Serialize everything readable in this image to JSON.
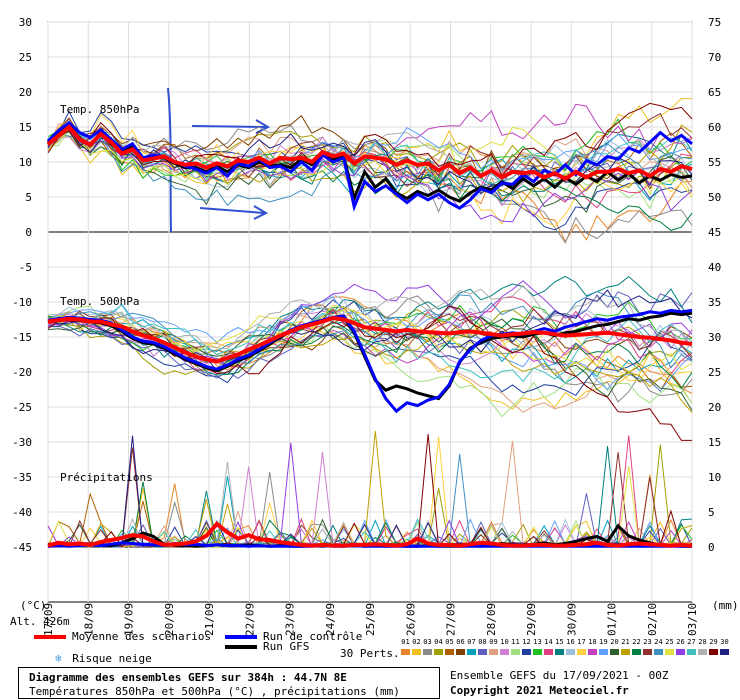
{
  "chart_data": {
    "type": "line",
    "title": "Diagramme des ensembles GEFS sur 384h : 44.7N 8E",
    "subtitle": "Températures 850hPa et 500hPa (°C) , précipitations (mm)",
    "x_ticks": [
      "17/09",
      "18/09",
      "19/09",
      "20/09",
      "21/09",
      "22/09",
      "23/09",
      "24/09",
      "25/09",
      "26/09",
      "27/09",
      "28/09",
      "29/09",
      "30/09",
      "01/10",
      "02/10",
      "03/10"
    ],
    "y_left_ticks": [
      "30",
      "25",
      "20",
      "15",
      "10",
      "5",
      "0",
      "-5",
      "-10",
      "-15",
      "-20",
      "-25",
      "-30",
      "-35",
      "-40",
      "-45"
    ],
    "y_right_ticks": [
      "75",
      "70",
      "65",
      "60",
      "55",
      "50",
      "45",
      "40",
      "35",
      "30",
      "25",
      "20",
      "15",
      "10",
      "5",
      "0"
    ],
    "y_left_unit": "(°C)",
    "y_right_unit": "(mm)",
    "panel_labels": {
      "t850": "Temp. 850hPa",
      "t500": "Temp. 500hPa",
      "precip": "Précipitations"
    },
    "altitude": "Alt. 426m",
    "grid": true,
    "series": [
      {
        "name": "Moyenne des scénarios",
        "color": "#ff0000",
        "t850": [
          12.5,
          13.8,
          15,
          13.2,
          12.5,
          14,
          12.8,
          11.2,
          11.8,
          10.2,
          10.5,
          10.8,
          10,
          9.6,
          9.8,
          9.2,
          9.8,
          9.4,
          10.2,
          10,
          10.6,
          9.8,
          10.6,
          10.4,
          10.6,
          10,
          11.4,
          10.8,
          11.2,
          9.8,
          10.8,
          10.6,
          10.4,
          9.6,
          10.2,
          9.6,
          9.8,
          8.8,
          9.6,
          8.4,
          9.2,
          8,
          8.8,
          7.8,
          8.6,
          8.4,
          8.6,
          7.8,
          8.4,
          7.6,
          8.6,
          7.8,
          8.6,
          8.6,
          9,
          8.4,
          8.8,
          8,
          9,
          8.6,
          9.4,
          9
        ],
        "t500": [
          -12.8,
          -12.6,
          -12.4,
          -12.5,
          -12.8,
          -12.8,
          -13.2,
          -13.5,
          -14.2,
          -14.8,
          -15.2,
          -15.8,
          -16.5,
          -17.2,
          -17.8,
          -18.2,
          -18.5,
          -18,
          -17.5,
          -16.8,
          -16.2,
          -15.5,
          -14.8,
          -14.2,
          -13.6,
          -13.2,
          -12.8,
          -12.3,
          -12.5,
          -13,
          -13.6,
          -13.8,
          -14,
          -14.2,
          -14,
          -14.2,
          -14.3,
          -14.4,
          -14.5,
          -14.3,
          -14.2,
          -14.4,
          -14.6,
          -14.8,
          -14.6,
          -14.5,
          -14.3,
          -14.4,
          -14.6,
          -14.8,
          -14.7,
          -14.6,
          -14.5,
          -14.4,
          -14.6,
          -14.8,
          -15,
          -15.1,
          -15.3,
          -15.5,
          -15.8,
          -16
        ],
        "precip": [
          0.2,
          0.6,
          0.4,
          0.5,
          0.3,
          0.7,
          1,
          1.3,
          1.7,
          1.5,
          0.8,
          0.3,
          0.4,
          0.5,
          0.8,
          1.6,
          3.3,
          2.1,
          1.2,
          1.7,
          1.1,
          1,
          0.7,
          0.5,
          0.3,
          0.2,
          0.3,
          0.2,
          0.2,
          0.3,
          0.3,
          0.4,
          0.3,
          0.2,
          0.4,
          1.2,
          0.5,
          0.3,
          0.3,
          0.2,
          0.4,
          0.6,
          0.5,
          0.3,
          0.2,
          0.2,
          0.3,
          0.3,
          0.2,
          0.2,
          0.3,
          0.4,
          0.6,
          0.3,
          0.2,
          0.4,
          0.5,
          0.4,
          0.3,
          0.2,
          0.3,
          0.2
        ]
      },
      {
        "name": "Run de contrôle",
        "color": "#0000ff",
        "t850": [
          13,
          14.5,
          15.6,
          14.2,
          13.5,
          14.6,
          13.2,
          11.8,
          12.6,
          10.6,
          11,
          10.8,
          10,
          9.4,
          9,
          8.4,
          9.2,
          8,
          9.8,
          9.4,
          10.4,
          9.2,
          9.4,
          8.6,
          10,
          8.8,
          11,
          10,
          10.6,
          3.6,
          7.2,
          5.8,
          6.6,
          5.4,
          4.2,
          5.4,
          4.6,
          5.4,
          4.2,
          3.4,
          4.6,
          6.2,
          5.6,
          7,
          6.8,
          8.2,
          7.2,
          8.8,
          8.2,
          9.6,
          8.2,
          10.2,
          9.6,
          10.8,
          10.4,
          12,
          11.4,
          12.8,
          14.2,
          13,
          13.8,
          12.6
        ],
        "t500": [
          -12.6,
          -12.4,
          -12.2,
          -12.3,
          -12.5,
          -12.6,
          -13,
          -14,
          -15,
          -15.6,
          -15.8,
          -16.4,
          -17.2,
          -18,
          -18.6,
          -19.2,
          -19.6,
          -19,
          -18.2,
          -17.6,
          -16.8,
          -15.8,
          -14.8,
          -14,
          -13.4,
          -13,
          -12.6,
          -12.2,
          -12,
          -14.2,
          -17.5,
          -21,
          -23.8,
          -25.6,
          -24.4,
          -24.8,
          -24,
          -23.6,
          -21.8,
          -18.5,
          -16.8,
          -15.5,
          -14.8,
          -14.6,
          -14.4,
          -14.6,
          -14.2,
          -13.8,
          -14.2,
          -13.6,
          -13.2,
          -12.8,
          -12.4,
          -12.6,
          -12.2,
          -12,
          -11.8,
          -11.4,
          -11.6,
          -11.2,
          -11.4,
          -11.2
        ],
        "precip": [
          0.1,
          0.2,
          0.1,
          0.2,
          0.3,
          0.2,
          0.4,
          0.6,
          0.5,
          0.4,
          0.3,
          0.2,
          0.5,
          0.3,
          0.4,
          0.2,
          0.3,
          0.2,
          0.2,
          0.1,
          0.2,
          0.1,
          0.1,
          0.1,
          0.1,
          0.1,
          0.2,
          0.1,
          0.1,
          0.2,
          0.1,
          0.1,
          0.1,
          0.1,
          0.1,
          0.1,
          0.1,
          0.1,
          0.2,
          0.1,
          0.1,
          0.1,
          0.1,
          0.1,
          0.1,
          0.1,
          0.1,
          0.1,
          0.1,
          0.1,
          0.1,
          0.1,
          0.1,
          0.1,
          0.1,
          0.1,
          0.1,
          0.1,
          0.1,
          0.1,
          0.1,
          0.1
        ]
      },
      {
        "name": "Run GFS",
        "color": "#000000",
        "t850": [
          12.8,
          14,
          15.2,
          13.4,
          12.4,
          14.2,
          12.6,
          11.4,
          12.4,
          10.4,
          10.8,
          10.6,
          9.8,
          9.2,
          9.2,
          8.6,
          9.4,
          8.6,
          9.6,
          9.2,
          10,
          9.4,
          9.6,
          9.2,
          10.4,
          9.6,
          11.2,
          10.4,
          10.8,
          4.8,
          8.6,
          6.4,
          7.6,
          5.6,
          4.8,
          5.8,
          5.2,
          6,
          5,
          4.4,
          5.6,
          6.4,
          6,
          7.2,
          6.2,
          7.6,
          6.6,
          7.6,
          6.4,
          7.8,
          6.8,
          8,
          7.2,
          8.6,
          7.4,
          8.4,
          7,
          8,
          7.4,
          8.2,
          7.8,
          8
        ],
        "t500": [
          -12.8,
          -12.6,
          -12.4,
          -12.6,
          -12.8,
          -13,
          -13.4,
          -14.2,
          -15.2,
          -15.8,
          -16,
          -16.6,
          -17.4,
          -18.2,
          -18.8,
          -19.4,
          -19.8,
          -19.2,
          -18.4,
          -17.8,
          -17,
          -16,
          -15,
          -14.2,
          -13.6,
          -13.2,
          -12.8,
          -12.4,
          -12.2,
          -14.4,
          -17.8,
          -21.2,
          -22.6,
          -22,
          -22.4,
          -23,
          -23.4,
          -23.8,
          -22,
          -18.6,
          -16.6,
          -15.8,
          -15.2,
          -15,
          -14.8,
          -15,
          -14.6,
          -14.4,
          -14.8,
          -14.4,
          -14.2,
          -13.8,
          -13.4,
          -13.2,
          -12.8,
          -12.4,
          -12.6,
          -12.2,
          -12,
          -11.6,
          -11.8,
          -11.6
        ],
        "precip": [
          0.1,
          0.2,
          0.3,
          0.2,
          0.4,
          0.3,
          0.2,
          0.6,
          1.2,
          2,
          1.5,
          0.4,
          0.3,
          0.2,
          0.1,
          0.2,
          0.3,
          0.2,
          0.2,
          0.3,
          0.2,
          0.1,
          0.2,
          0.1,
          0.1,
          0.2,
          0.1,
          0.2,
          0.1,
          0.2,
          0.1,
          0.3,
          0.1,
          0.2,
          0.1,
          0.1,
          0.2,
          0.1,
          0.1,
          0.1,
          0.2,
          0.1,
          0.3,
          0.5,
          0.3,
          0.2,
          0.4,
          0.6,
          0.3,
          0.5,
          0.8,
          1.2,
          1.5,
          0.8,
          3,
          1.6,
          1,
          0.6,
          0.3,
          0.2,
          0.1,
          0.1
        ]
      }
    ],
    "legend": {
      "mean": "Moyenne des scénarios",
      "control": "Run de contrôle",
      "gfs": "Run GFS",
      "snow": "Risque neige",
      "perts": "30 Perts.",
      "pert_numbers": [
        "01",
        "02",
        "03",
        "04",
        "05",
        "06",
        "07",
        "08",
        "09",
        "10",
        "11",
        "12",
        "13",
        "14",
        "15",
        "16",
        "17",
        "18",
        "19",
        "20",
        "21",
        "22",
        "23",
        "24",
        "25",
        "26",
        "27",
        "28",
        "29",
        "30"
      ],
      "pert_colors": [
        "#e8852a",
        "#f0c020",
        "#8a8a8a",
        "#a0a000",
        "#b06000",
        "#804000",
        "#00a0c0",
        "#6060c0",
        "#e0a080",
        "#d080d0",
        "#a0e080",
        "#2040a0",
        "#20c020",
        "#e04080",
        "#008080",
        "#a0c0e0",
        "#ffd040",
        "#c040c0",
        "#60a0ff",
        "#306030",
        "#c0a000",
        "#008040",
        "#903030",
        "#4090c0",
        "#e0e040",
        "#9040e0",
        "#40c0c0",
        "#b0b0b0",
        "#800000",
        "#202080"
      ]
    },
    "footer": {
      "title_line": "Diagramme des ensembles GEFS sur 384h : 44.7N 8E",
      "subtitle_line": "Températures 850hPa et 500hPa (°C) , précipitations (mm)",
      "run": "Ensemble GEFS du 17/09/2021 - 00Z",
      "copyright": "Copyright 2021 Meteociel.fr"
    }
  }
}
